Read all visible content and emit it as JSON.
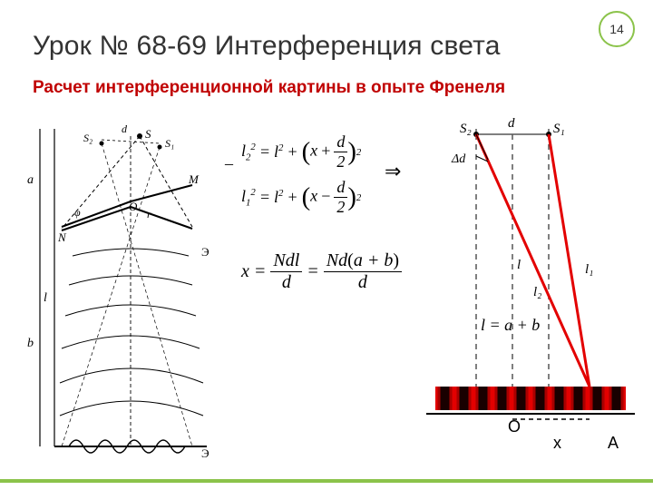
{
  "badge": "14",
  "title": "Урок № 68-69 Интерференция света",
  "subtitle": "Расчет интерференционной картины в опыте Френеля",
  "equations": {
    "l2": {
      "base": "l",
      "sub": "2",
      "x": "x",
      "d": "d",
      "two": "2"
    },
    "l1": {
      "base": "l",
      "sub": "1",
      "x": "x",
      "d": "d",
      "two": "2"
    },
    "arrow": "⇒",
    "minus": "–",
    "xres": {
      "x": "x",
      "N": "N",
      "d": "d",
      "l": "l",
      "a": "a",
      "b": "b"
    },
    "lab": {
      "text": "l = a + b"
    }
  },
  "rightDiagram": {
    "s1": "S₁",
    "s2": "S₂",
    "d": "d",
    "dd": "Δd",
    "l": "l",
    "l1": "l₁",
    "l2": "l₂",
    "O": "О",
    "x": "x",
    "A": "A",
    "colors": {
      "ray": "#e30000",
      "bar_red": "#e30000",
      "bar_black": "#000",
      "axis": "#000",
      "dash": "#555"
    }
  },
  "leftDiagram": {
    "labels": {
      "S": "S",
      "S1": "S₁",
      "S2": "S₂",
      "M": "M",
      "N": "N",
      "O": "O",
      "d": "d",
      "a": "a",
      "b": "b",
      "l": "l",
      "r": "r",
      "phi": "φ",
      "scr": "Э"
    },
    "colors": {
      "line": "#000",
      "wave": "#000"
    }
  }
}
